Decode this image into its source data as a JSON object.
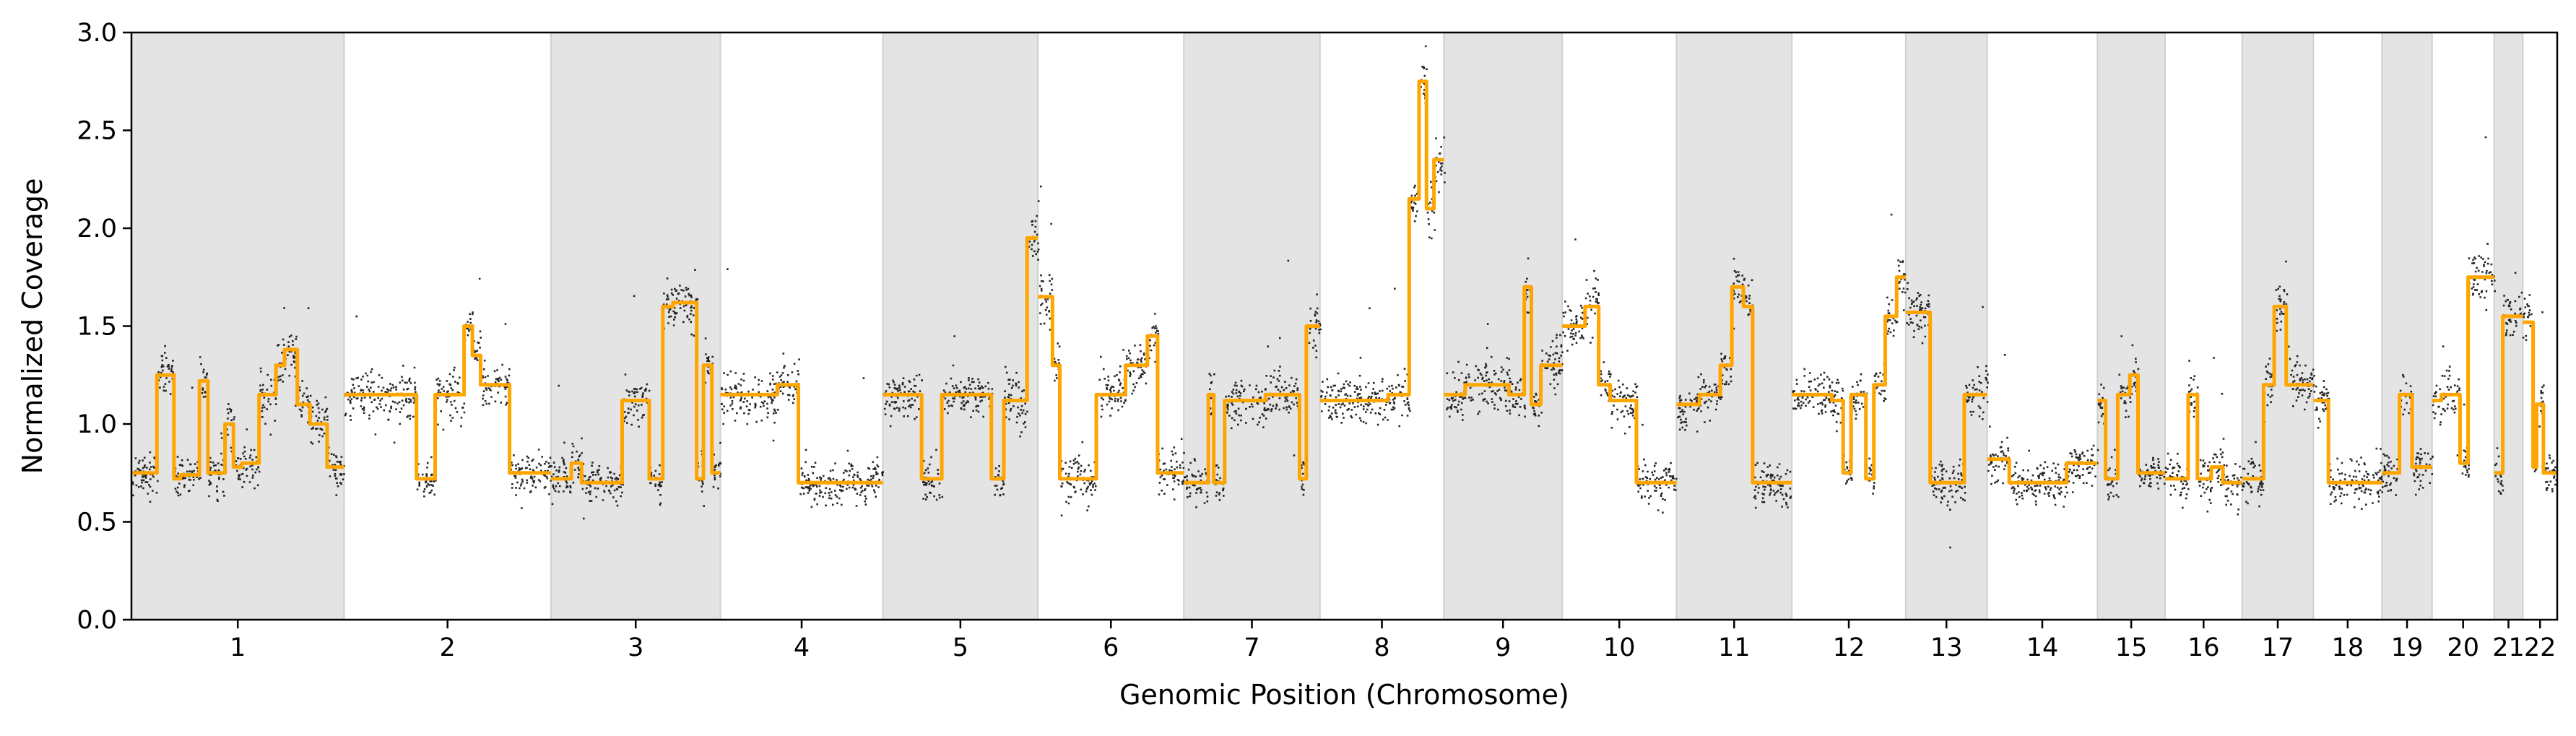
{
  "chart_data": {
    "type": "scatter",
    "title": "",
    "xlabel": "Genomic Position (Chromosome)",
    "ylabel": "Normalized Coverage",
    "ylim": [
      0.0,
      3.0
    ],
    "yticks": [
      "0.0",
      "0.5",
      "1.0",
      "1.5",
      "2.0",
      "2.5",
      "3.0"
    ],
    "grid": false,
    "legend": "none",
    "colors": {
      "points": "#000000",
      "segments": "#ffa500",
      "band": "#e4e4e4",
      "band_edge": "#d0d0d0"
    },
    "chromosomes": [
      {
        "label": "1",
        "length": 248.9,
        "shaded": true
      },
      {
        "label": "2",
        "length": 242.2,
        "shaded": false
      },
      {
        "label": "3",
        "length": 198.3,
        "shaded": true
      },
      {
        "label": "4",
        "length": 190.2,
        "shaded": false
      },
      {
        "label": "5",
        "length": 181.5,
        "shaded": true
      },
      {
        "label": "6",
        "length": 170.8,
        "shaded": false
      },
      {
        "label": "7",
        "length": 159.3,
        "shaded": true
      },
      {
        "label": "8",
        "length": 145.1,
        "shaded": false
      },
      {
        "label": "9",
        "length": 138.4,
        "shaded": true
      },
      {
        "label": "10",
        "length": 133.8,
        "shaded": false
      },
      {
        "label": "11",
        "length": 135.1,
        "shaded": true
      },
      {
        "label": "12",
        "length": 133.3,
        "shaded": false
      },
      {
        "label": "13",
        "length": 95.3,
        "shaded": true
      },
      {
        "label": "14",
        "length": 129.1,
        "shaded": false
      },
      {
        "label": "15",
        "length": 79.1,
        "shaded": true
      },
      {
        "label": "16",
        "length": 90.3,
        "shaded": false
      },
      {
        "label": "17",
        "length": 83.3,
        "shaded": true
      },
      {
        "label": "18",
        "length": 80.4,
        "shaded": false
      },
      {
        "label": "19",
        "length": 58.6,
        "shaded": true
      },
      {
        "label": "20",
        "length": 72.7,
        "shaded": false
      },
      {
        "label": "21",
        "length": 33.5,
        "shaded": true
      },
      {
        "label": "22",
        "length": 40.3,
        "shaded": false
      }
    ],
    "series": [
      {
        "type": "segments",
        "segments": {
          "1": [
            [
              0,
              0.12,
              0.75
            ],
            [
              0.12,
              0.2,
              1.25
            ],
            [
              0.2,
              0.23,
              0.72
            ],
            [
              0.23,
              0.32,
              0.74
            ],
            [
              0.32,
              0.36,
              1.22
            ],
            [
              0.36,
              0.44,
              0.75
            ],
            [
              0.44,
              0.48,
              1.0
            ],
            [
              0.48,
              0.52,
              0.78
            ],
            [
              0.52,
              0.6,
              0.8
            ],
            [
              0.6,
              0.68,
              1.15
            ],
            [
              0.68,
              0.72,
              1.3
            ],
            [
              0.72,
              0.78,
              1.38
            ],
            [
              0.78,
              0.84,
              1.1
            ],
            [
              0.84,
              0.92,
              1.0
            ],
            [
              0.92,
              1.0,
              0.78
            ]
          ],
          "2": [
            [
              0,
              0.35,
              1.15
            ],
            [
              0.35,
              0.44,
              0.72
            ],
            [
              0.44,
              0.58,
              1.15
            ],
            [
              0.58,
              0.62,
              1.5
            ],
            [
              0.62,
              0.66,
              1.35
            ],
            [
              0.66,
              0.8,
              1.2
            ],
            [
              0.8,
              1.0,
              0.75
            ]
          ],
          "3": [
            [
              0,
              0.12,
              0.72
            ],
            [
              0.12,
              0.18,
              0.8
            ],
            [
              0.18,
              0.42,
              0.7
            ],
            [
              0.42,
              0.58,
              1.12
            ],
            [
              0.58,
              0.66,
              0.72
            ],
            [
              0.66,
              0.72,
              1.6
            ],
            [
              0.72,
              0.86,
              1.62
            ],
            [
              0.86,
              0.9,
              0.72
            ],
            [
              0.9,
              0.95,
              1.3
            ],
            [
              0.95,
              1.0,
              0.75
            ]
          ],
          "4": [
            [
              0,
              0.35,
              1.15
            ],
            [
              0.35,
              0.48,
              1.2
            ],
            [
              0.48,
              1.0,
              0.7
            ]
          ],
          "5": [
            [
              0,
              0.25,
              1.15
            ],
            [
              0.25,
              0.38,
              0.72
            ],
            [
              0.38,
              0.7,
              1.15
            ],
            [
              0.7,
              0.78,
              0.72
            ],
            [
              0.78,
              0.93,
              1.12
            ],
            [
              0.93,
              1.0,
              1.95
            ]
          ],
          "6": [
            [
              0,
              0.1,
              1.65
            ],
            [
              0.1,
              0.15,
              1.3
            ],
            [
              0.15,
              0.4,
              0.72
            ],
            [
              0.4,
              0.6,
              1.15
            ],
            [
              0.6,
              0.75,
              1.3
            ],
            [
              0.75,
              0.82,
              1.45
            ],
            [
              0.82,
              1.0,
              0.75
            ]
          ],
          "7": [
            [
              0,
              0.18,
              0.7
            ],
            [
              0.18,
              0.22,
              1.15
            ],
            [
              0.22,
              0.3,
              0.7
            ],
            [
              0.3,
              0.6,
              1.12
            ],
            [
              0.6,
              0.85,
              1.15
            ],
            [
              0.85,
              0.9,
              0.72
            ],
            [
              0.9,
              1.0,
              1.5
            ]
          ],
          "8": [
            [
              0,
              0.55,
              1.12
            ],
            [
              0.55,
              0.72,
              1.15
            ],
            [
              0.72,
              0.8,
              2.15
            ],
            [
              0.8,
              0.86,
              2.75
            ],
            [
              0.86,
              0.92,
              2.1
            ],
            [
              0.92,
              1.0,
              2.35
            ]
          ],
          "9": [
            [
              0,
              0.18,
              1.15
            ],
            [
              0.18,
              0.55,
              1.2
            ],
            [
              0.55,
              0.68,
              1.15
            ],
            [
              0.68,
              0.74,
              1.7
            ],
            [
              0.74,
              0.82,
              1.1
            ],
            [
              0.82,
              1.0,
              1.3
            ]
          ],
          "10": [
            [
              0,
              0.2,
              1.5
            ],
            [
              0.2,
              0.32,
              1.6
            ],
            [
              0.32,
              0.42,
              1.2
            ],
            [
              0.42,
              0.65,
              1.12
            ],
            [
              0.65,
              1.0,
              0.7
            ]
          ],
          "11": [
            [
              0,
              0.2,
              1.1
            ],
            [
              0.2,
              0.38,
              1.15
            ],
            [
              0.38,
              0.48,
              1.3
            ],
            [
              0.48,
              0.58,
              1.7
            ],
            [
              0.58,
              0.66,
              1.6
            ],
            [
              0.66,
              1.0,
              0.7
            ]
          ],
          "12": [
            [
              0,
              0.35,
              1.15
            ],
            [
              0.35,
              0.45,
              1.12
            ],
            [
              0.45,
              0.52,
              0.75
            ],
            [
              0.52,
              0.65,
              1.15
            ],
            [
              0.65,
              0.72,
              0.72
            ],
            [
              0.72,
              0.82,
              1.2
            ],
            [
              0.82,
              0.92,
              1.55
            ],
            [
              0.92,
              1.0,
              1.75
            ]
          ],
          "13": [
            [
              0,
              0.22,
              1.57
            ],
            [
              0.22,
              0.3,
              1.57
            ],
            [
              0.3,
              0.6,
              0.7
            ],
            [
              0.6,
              0.72,
              0.7
            ],
            [
              0.72,
              1.0,
              1.15
            ]
          ],
          "14": [
            [
              0,
              0.2,
              0.82
            ],
            [
              0.2,
              0.5,
              0.7
            ],
            [
              0.5,
              0.72,
              0.7
            ],
            [
              0.72,
              1.0,
              0.8
            ]
          ],
          "15": [
            [
              0,
              0.12,
              1.12
            ],
            [
              0.12,
              0.3,
              0.72
            ],
            [
              0.3,
              0.48,
              1.15
            ],
            [
              0.48,
              0.6,
              1.25
            ],
            [
              0.6,
              1.0,
              0.75
            ]
          ],
          "16": [
            [
              0,
              0.3,
              0.72
            ],
            [
              0.3,
              0.42,
              1.15
            ],
            [
              0.42,
              0.6,
              0.72
            ],
            [
              0.6,
              0.75,
              0.78
            ],
            [
              0.75,
              1.0,
              0.7
            ]
          ],
          "17": [
            [
              0,
              0.3,
              0.72
            ],
            [
              0.3,
              0.45,
              1.2
            ],
            [
              0.45,
              0.62,
              1.6
            ],
            [
              0.62,
              0.8,
              1.2
            ],
            [
              0.8,
              1.0,
              1.2
            ]
          ],
          "18": [
            [
              0,
              0.22,
              1.12
            ],
            [
              0.22,
              1.0,
              0.7
            ]
          ],
          "19": [
            [
              0,
              0.35,
              0.75
            ],
            [
              0.35,
              0.6,
              1.15
            ],
            [
              0.6,
              1.0,
              0.78
            ]
          ],
          "20": [
            [
              0,
              0.15,
              1.12
            ],
            [
              0.15,
              0.45,
              1.15
            ],
            [
              0.45,
              0.58,
              0.8
            ],
            [
              0.58,
              1.0,
              1.75
            ]
          ],
          "21": [
            [
              0,
              0.3,
              0.75
            ],
            [
              0.3,
              1.0,
              1.55
            ]
          ],
          "22": [
            [
              0,
              0.3,
              1.52
            ],
            [
              0.3,
              0.4,
              0.78
            ],
            [
              0.4,
              0.6,
              1.1
            ],
            [
              0.6,
              1.0,
              0.75
            ]
          ]
        }
      }
    ],
    "noise_sd": 0.055
  }
}
